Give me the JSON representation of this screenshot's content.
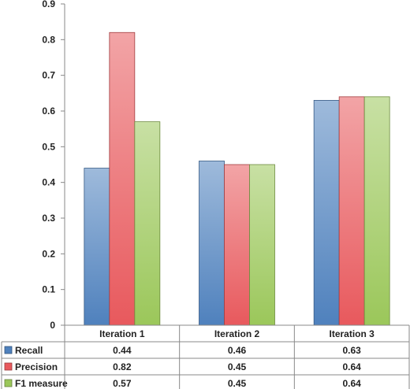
{
  "chart_data": {
    "type": "bar",
    "title": "",
    "xlabel": "",
    "ylabel": "",
    "ylim": [
      0,
      0.9
    ],
    "yticks": [
      0,
      0.1,
      0.2,
      0.3,
      0.4,
      0.5,
      0.6,
      0.7,
      0.8,
      0.9
    ],
    "ytick_labels": [
      "0",
      "0.1",
      "0.2",
      "0.3",
      "0.4",
      "0.5",
      "0.6",
      "0.7",
      "0.8",
      "0.9"
    ],
    "grid": false,
    "legend": "data-table",
    "categories": [
      "Iteration 1",
      "Iteration 2",
      "Iteration 3"
    ],
    "series": [
      {
        "name": "Recall",
        "values": [
          0.44,
          0.46,
          0.63
        ],
        "labels": [
          "0.44",
          "0.46",
          "0.63"
        ],
        "color": "#4f81bd"
      },
      {
        "name": "Precision",
        "values": [
          0.82,
          0.45,
          0.64
        ],
        "labels": [
          "0.82",
          "0.45",
          "0.64"
        ],
        "color": "#e8595d"
      },
      {
        "name": "F1 measure",
        "values": [
          0.57,
          0.45,
          0.64
        ],
        "labels": [
          "0.57",
          "0.45",
          "0.64"
        ],
        "color": "#9bc75a"
      }
    ]
  }
}
